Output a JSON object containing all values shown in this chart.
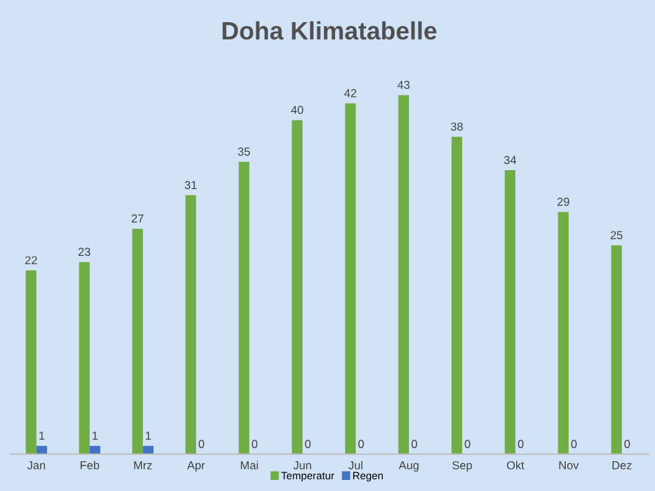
{
  "chart_data": {
    "type": "bar",
    "title": "Doha Klimatabelle",
    "categories": [
      "Jan",
      "Feb",
      "Mrz",
      "Apr",
      "Mai",
      "Jun",
      "Jul",
      "Aug",
      "Sep",
      "Okt",
      "Nov",
      "Dez"
    ],
    "series": [
      {
        "name": "Temperatur",
        "color": "#70ad47",
        "values": [
          22,
          23,
          27,
          31,
          35,
          40,
          42,
          43,
          38,
          34,
          29,
          25
        ]
      },
      {
        "name": "Regen",
        "color": "#4472c4",
        "values": [
          1,
          1,
          1,
          0,
          0,
          0,
          0,
          0,
          0,
          0,
          0,
          0
        ]
      }
    ],
    "data_labels": true,
    "legend": "bottom",
    "grid": false
  }
}
